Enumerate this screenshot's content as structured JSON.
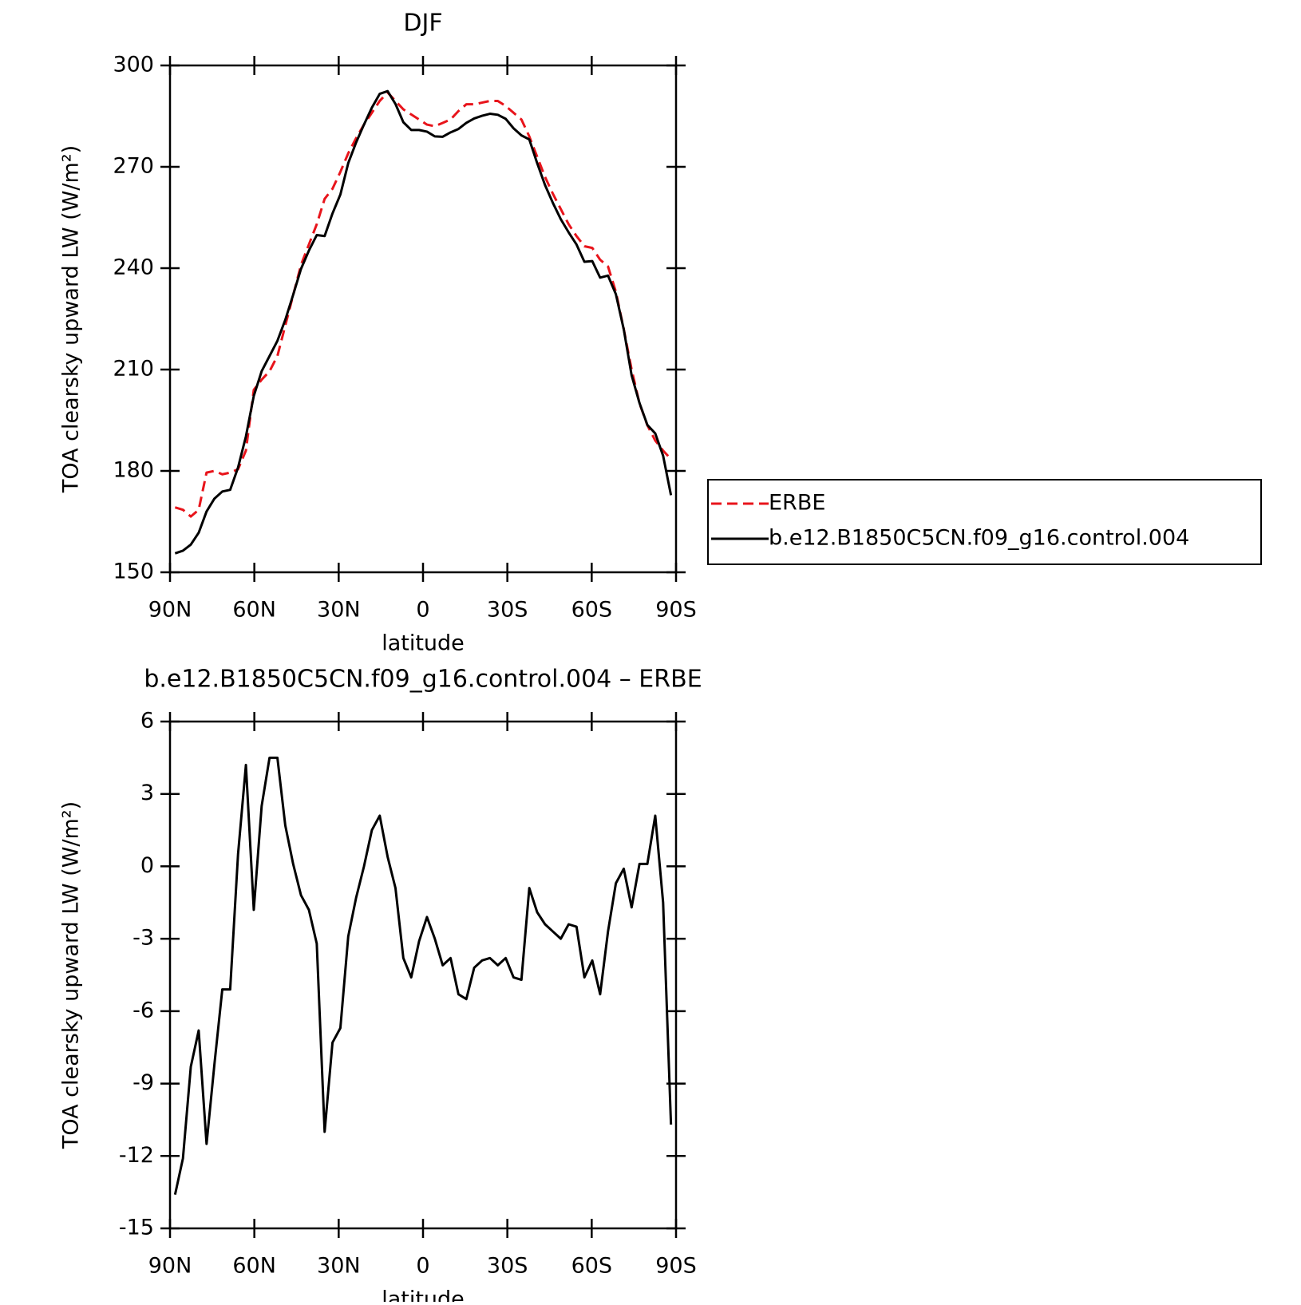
{
  "chart_data": [
    {
      "type": "line",
      "title": "DJF",
      "ylabel": "TOA clearsky upward LW (W/m²)",
      "xlabel": "latitude",
      "x": [
        88.2,
        85.4,
        82.6,
        79.8,
        77,
        74.2,
        71.4,
        68.6,
        65.8,
        63,
        60.2,
        57.4,
        54.6,
        51.8,
        49,
        46.2,
        43.4,
        40.6,
        37.8,
        35,
        32.2,
        29.4,
        26.6,
        23.8,
        21,
        18.2,
        15.4,
        12.6,
        9.8,
        7,
        4.2,
        1.4,
        -1.4,
        -4.2,
        -7,
        -9.8,
        -12.6,
        -15.4,
        -18.2,
        -21,
        -23.8,
        -26.6,
        -29.4,
        -32.2,
        -35,
        -37.8,
        -40.6,
        -43.4,
        -46.2,
        -49,
        -51.8,
        -54.6,
        -57.4,
        -60.2,
        -63,
        -65.8,
        -68.6,
        -71.4,
        -74.2,
        -77,
        -79.8,
        -82.6,
        -85.4,
        -88.2
      ],
      "series": [
        {
          "name": "ERBE",
          "color": "#e8141b",
          "dash": true,
          "values": [
            169.2,
            168.5,
            166.5,
            168.5,
            179.5,
            180,
            179,
            179.5,
            180.5,
            186,
            204,
            207,
            209.5,
            214,
            223,
            232,
            241,
            247,
            253,
            260.5,
            263.5,
            268.5,
            274,
            278.5,
            282.5,
            286,
            289.5,
            292,
            289.5,
            287,
            285.5,
            284,
            282.5,
            282,
            283,
            284,
            286.5,
            288.5,
            288.5,
            289,
            289.5,
            289.5,
            288,
            286,
            284,
            279,
            273,
            267,
            262,
            257.5,
            253,
            249.5,
            246.5,
            246,
            242.5,
            240.5,
            233,
            222,
            210,
            200,
            193.5,
            189,
            186,
            183.5
          ]
        },
        {
          "name": "b.e12.B1850C5CN.f09_g16.control.004",
          "color": "#000000",
          "dash": false,
          "values": [
            155.6,
            156.4,
            158.2,
            161.7,
            168,
            171.8,
            173.9,
            174.4,
            181,
            190.2,
            202.2,
            209.5,
            214,
            218.5,
            224.7,
            232.1,
            239.8,
            245.2,
            249.8,
            249.5,
            256.2,
            261.8,
            271.1,
            277.2,
            282.5,
            287.5,
            291.6,
            292.4,
            288.6,
            283.2,
            280.9,
            280.9,
            280.4,
            279,
            278.9,
            280.2,
            281.2,
            283,
            284.3,
            285.1,
            285.7,
            285.4,
            284.2,
            281.4,
            279.3,
            278.1,
            271.1,
            264.6,
            259.3,
            254.5,
            250.6,
            247,
            241.9,
            242.1,
            237.2,
            237.8,
            232.3,
            221.9,
            208.3,
            200.1,
            193.6,
            191.1,
            184.5,
            172.8
          ]
        }
      ],
      "xlim": [
        90,
        -90
      ],
      "xticks": [
        {
          "value": 90,
          "label": "90N"
        },
        {
          "value": 60,
          "label": "60N"
        },
        {
          "value": 30,
          "label": "30N"
        },
        0,
        {
          "value": -30,
          "label": "30S"
        },
        {
          "value": -60,
          "label": "60S"
        },
        {
          "value": -90,
          "label": "90S"
        }
      ],
      "ylim": [
        150,
        300
      ],
      "yticks": [
        150,
        180,
        210,
        240,
        270,
        300
      ],
      "legend": "right"
    },
    {
      "type": "line",
      "title": "b.e12.B1850C5CN.f09_g16.control.004 – ERBE",
      "ylabel": "TOA clearsky upward LW (W/m²)",
      "xlabel": "latitude",
      "x": [
        88.2,
        85.4,
        82.6,
        79.8,
        77,
        74.2,
        71.4,
        68.6,
        65.8,
        63,
        60.2,
        57.4,
        54.6,
        51.8,
        49,
        46.2,
        43.4,
        40.6,
        37.8,
        35,
        32.2,
        29.4,
        26.6,
        23.8,
        21,
        18.2,
        15.4,
        12.6,
        9.8,
        7,
        4.2,
        1.4,
        -1.4,
        -4.2,
        -7,
        -9.8,
        -12.6,
        -15.4,
        -18.2,
        -21,
        -23.8,
        -26.6,
        -29.4,
        -32.2,
        -35,
        -37.8,
        -40.6,
        -43.4,
        -46.2,
        -49,
        -51.8,
        -54.6,
        -57.4,
        -60.2,
        -63,
        -65.8,
        -68.6,
        -71.4,
        -74.2,
        -77,
        -79.8,
        -82.6,
        -85.4,
        -88.2
      ],
      "color": "#000000",
      "values": [
        -13.6,
        -12.1,
        -8.3,
        -6.8,
        -11.5,
        -8.2,
        -5.1,
        -5.1,
        0.5,
        4.2,
        -1.8,
        2.5,
        4.5,
        4.5,
        1.7,
        0.1,
        -1.2,
        -1.8,
        -3.2,
        -11,
        -7.3,
        -6.7,
        -2.9,
        -1.3,
        0,
        1.5,
        2.1,
        0.4,
        -0.9,
        -3.8,
        -4.6,
        -3.1,
        -2.1,
        -3,
        -4.1,
        -3.8,
        -5.3,
        -5.5,
        -4.2,
        -3.9,
        -3.8,
        -4.1,
        -3.8,
        -4.6,
        -4.7,
        -0.9,
        -1.9,
        -2.4,
        -2.7,
        -3,
        -2.4,
        -2.5,
        -4.6,
        -3.9,
        -5.3,
        -2.7,
        -0.7,
        -0.1,
        -1.7,
        0.1,
        0.1,
        2.1,
        -1.5,
        -10.7
      ],
      "xlim": [
        90,
        -90
      ],
      "xticks": [
        {
          "value": 90,
          "label": "90N"
        },
        {
          "value": 60,
          "label": "60N"
        },
        {
          "value": 30,
          "label": "30N"
        },
        0,
        {
          "value": -30,
          "label": "30S"
        },
        {
          "value": -60,
          "label": "60S"
        },
        {
          "value": -90,
          "label": "90S"
        }
      ],
      "ylim": [
        -15,
        6
      ],
      "yticks": [
        -15,
        -12,
        -9,
        -6,
        -3,
        0,
        3,
        6
      ]
    }
  ]
}
